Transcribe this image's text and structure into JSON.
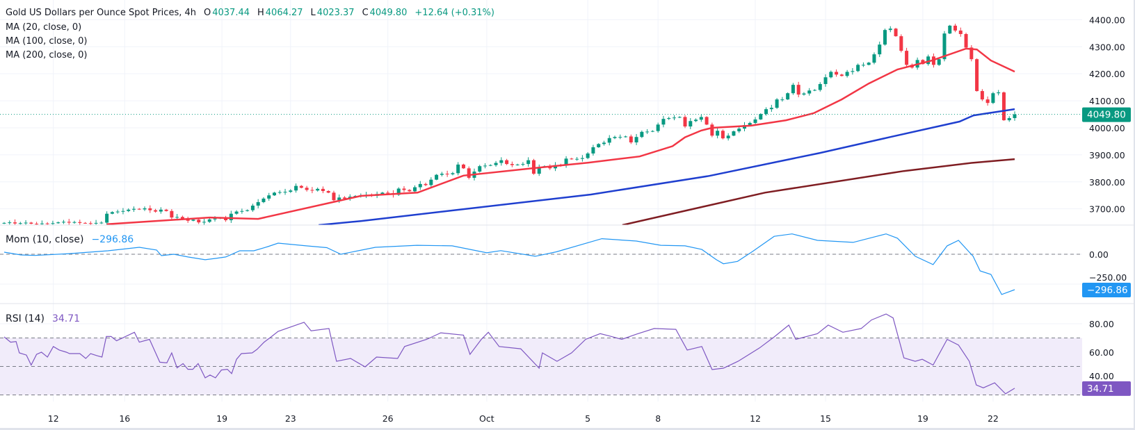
{
  "header": {
    "title": "Gold US Dollars per Ounce Spot Prices, 4h",
    "o_label": "O",
    "o_value": "4037.44",
    "h_label": "H",
    "h_value": "4064.27",
    "l_label": "L",
    "l_value": "4023.37",
    "c_label": "C",
    "c_value": "4049.80",
    "change": "+12.64 (+0.31%)"
  },
  "indicators": {
    "ma20": "MA (20, close, 0)",
    "ma100": "MA (100, close, 0)",
    "ma200": "MA (200, close, 0)",
    "mom_label": "Mom (10, close)",
    "mom_value": "−296.86",
    "rsi_label": "RSI (14)",
    "rsi_value": "34.71"
  },
  "colors": {
    "up": "#089981",
    "down": "#f23645",
    "ma20": "#f23645",
    "ma100": "#1f3fcf",
    "ma200": "#7f1d22",
    "mom": "#2196f3",
    "rsi": "#7e57c2",
    "rsi_band": "#f1ecfa",
    "grid": "#f0f3fa",
    "separator": "#e0e3eb"
  },
  "chart_data": {
    "type": "candlestick",
    "title": "Gold US Dollars per Ounce Spot Prices, 4h",
    "x_tick_labels": [
      {
        "bar": 9.1,
        "label": "12"
      },
      {
        "bar": 22.3,
        "label": "16"
      },
      {
        "bar": 40.3,
        "label": "19"
      },
      {
        "bar": 53,
        "label": "23"
      },
      {
        "bar": 71,
        "label": "26"
      },
      {
        "bar": 89.3,
        "label": "Oct"
      },
      {
        "bar": 108,
        "label": "5"
      },
      {
        "bar": 121,
        "label": "8"
      },
      {
        "bar": 139,
        "label": "12"
      },
      {
        "bar": 152,
        "label": "15"
      },
      {
        "bar": 170,
        "label": "19"
      },
      {
        "bar": 183,
        "label": "22"
      }
    ],
    "price_pane": {
      "ylim": [
        3640,
        4473
      ],
      "y_ticks": [
        {
          "v": 4400,
          "label": "4400.00"
        },
        {
          "v": 4300,
          "label": "4300.00"
        },
        {
          "v": 4200,
          "label": "4200.00"
        },
        {
          "v": 4100,
          "label": "4100.00"
        },
        {
          "v": 4000,
          "label": "4000.00"
        },
        {
          "v": 3900,
          "label": "3900.00"
        },
        {
          "v": 3800,
          "label": "3800.00"
        },
        {
          "v": 3700,
          "label": "3700.00"
        }
      ],
      "last_price": 4049.8,
      "last_price_label": "4049.80",
      "closes": [
        3648,
        3650,
        3646,
        3647,
        3649,
        3645,
        3644,
        3646,
        3645,
        3647,
        3650,
        3652,
        3649,
        3651,
        3648,
        3647,
        3646,
        3648,
        3649,
        3682,
        3688,
        3690,
        3692,
        3697,
        3700,
        3698,
        3702,
        3695,
        3690,
        3697,
        3692,
        3668,
        3670,
        3662,
        3656,
        3660,
        3650,
        3652,
        3661,
        3664,
        3667,
        3658,
        3682,
        3690,
        3692,
        3695,
        3712,
        3725,
        3738,
        3750,
        3760,
        3762,
        3763,
        3768,
        3785,
        3778,
        3770,
        3768,
        3774,
        3766,
        3760,
        3732,
        3742,
        3738,
        3745,
        3748,
        3750,
        3752,
        3748,
        3755,
        3760,
        3758,
        3752,
        3775,
        3770,
        3765,
        3780,
        3792,
        3788,
        3808,
        3826,
        3830,
        3828,
        3832,
        3864,
        3850,
        3815,
        3838,
        3858,
        3860,
        3862,
        3870,
        3880,
        3866,
        3862,
        3864,
        3866,
        3880,
        3830,
        3855,
        3858,
        3850,
        3862,
        3860,
        3886,
        3884,
        3885,
        3888,
        3905,
        3928,
        3940,
        3945,
        3962,
        3966,
        3966,
        3968,
        3946,
        3966,
        3985,
        3986,
        3988,
        4012,
        4033,
        4036,
        4038,
        4040,
        4005,
        4025,
        4030,
        4040,
        4012,
        3971,
        3989,
        3961,
        3971,
        3987,
        3997,
        4010,
        4018,
        4031,
        4051,
        4069,
        4074,
        4105,
        4105,
        4128,
        4159,
        4123,
        4127,
        4138,
        4140,
        4162,
        4187,
        4207,
        4197,
        4192,
        4207,
        4210,
        4233,
        4233,
        4241,
        4272,
        4308,
        4362,
        4367,
        4339,
        4285,
        4233,
        4223,
        4251,
        4236,
        4264,
        4233,
        4254,
        4349,
        4378,
        4360,
        4347,
        4297,
        4254,
        4136,
        4105,
        4092,
        4128,
        4131,
        4028,
        4036,
        4049.8
      ],
      "ma20": [
        [
          19,
          3643
        ],
        [
          38,
          3668
        ],
        [
          47,
          3663
        ],
        [
          66,
          3748
        ],
        [
          76.5,
          3760
        ],
        [
          85,
          3823
        ],
        [
          99,
          3853
        ],
        [
          108,
          3871
        ],
        [
          117.6,
          3894
        ],
        [
          123.7,
          3932
        ],
        [
          126,
          3965
        ],
        [
          129,
          3990
        ],
        [
          131,
          4000
        ],
        [
          138.2,
          4008
        ],
        [
          144.7,
          4028
        ],
        [
          149.8,
          4054
        ],
        [
          155,
          4105
        ],
        [
          160,
          4164
        ],
        [
          165.3,
          4216
        ],
        [
          171.7,
          4249
        ],
        [
          178,
          4293
        ],
        [
          180,
          4290
        ],
        [
          182.6,
          4249
        ],
        [
          187,
          4208
        ]
      ],
      "ma100": [
        [
          58.2,
          3640
        ],
        [
          66,
          3655
        ],
        [
          108.6,
          3753
        ],
        [
          130.5,
          3822
        ],
        [
          151,
          3907
        ],
        [
          164,
          3966
        ],
        [
          176.8,
          4023
        ],
        [
          179.4,
          4046
        ],
        [
          187,
          4069
        ]
      ],
      "ma200": [
        [
          114.4,
          3640
        ],
        [
          140.8,
          3760
        ],
        [
          166.5,
          3840
        ],
        [
          179.4,
          3871
        ],
        [
          187,
          3884
        ]
      ]
    },
    "momentum_pane": {
      "ylim": [
        -413,
        244
      ],
      "y_ticks": [
        {
          "v": 0,
          "label": "0.00"
        },
        {
          "v": -250,
          "label": "−250.00"
        }
      ],
      "last_label": "−296.86",
      "points": [
        [
          0,
          17
        ],
        [
          3.1,
          -6
        ],
        [
          5.7,
          -10
        ],
        [
          12.1,
          5
        ],
        [
          19.2,
          29
        ],
        [
          25,
          58
        ],
        [
          28.2,
          35
        ],
        [
          29.1,
          -12
        ],
        [
          31.4,
          0
        ],
        [
          34,
          -23
        ],
        [
          37.2,
          -46
        ],
        [
          39.1,
          -35
        ],
        [
          41,
          -23
        ],
        [
          43.6,
          29
        ],
        [
          46.2,
          29
        ],
        [
          48.8,
          64
        ],
        [
          50.7,
          93
        ],
        [
          55.9,
          70
        ],
        [
          59.7,
          55
        ],
        [
          62.3,
          0
        ],
        [
          68.7,
          58
        ],
        [
          76.4,
          75
        ],
        [
          82.9,
          70
        ],
        [
          89.3,
          12
        ],
        [
          91.9,
          30
        ],
        [
          98.3,
          -17
        ],
        [
          102.2,
          20
        ],
        [
          110.6,
          130
        ],
        [
          117,
          110
        ],
        [
          121.5,
          75
        ],
        [
          126,
          70
        ],
        [
          129.1,
          40
        ],
        [
          131.8,
          -46
        ],
        [
          133.1,
          -80
        ],
        [
          135.7,
          -60
        ],
        [
          138.5,
          23
        ],
        [
          142.5,
          150
        ],
        [
          145.8,
          170
        ],
        [
          150.5,
          116
        ],
        [
          157.1,
          99
        ],
        [
          163.2,
          170
        ],
        [
          165.3,
          134
        ],
        [
          168.6,
          -17
        ],
        [
          171.9,
          -87
        ],
        [
          174.5,
          70
        ],
        [
          176.6,
          116
        ],
        [
          179.3,
          -17
        ],
        [
          180.6,
          -140
        ],
        [
          182.6,
          -169
        ],
        [
          184.6,
          -337
        ],
        [
          187,
          -296.86
        ]
      ]
    },
    "rsi_pane": {
      "ylim": [
        25.4,
        94.1
      ],
      "band": [
        30,
        70
      ],
      "dashed_levels": [
        70,
        50,
        30
      ],
      "y_ticks": [
        {
          "v": 80,
          "label": "80.00"
        },
        {
          "v": 60,
          "label": "60.00"
        },
        {
          "v": 40,
          "label": "40.00"
        }
      ],
      "last_label": "34.71",
      "points": [
        [
          0,
          70.7
        ],
        [
          1.2,
          67
        ],
        [
          2.2,
          67.5
        ],
        [
          2.8,
          59.5
        ],
        [
          4.1,
          58
        ],
        [
          5,
          51
        ],
        [
          6,
          58.5
        ],
        [
          6.9,
          60
        ],
        [
          8,
          56.6
        ],
        [
          9.1,
          64
        ],
        [
          10.2,
          61.5
        ],
        [
          11.5,
          60
        ],
        [
          12.1,
          59
        ],
        [
          14,
          59
        ],
        [
          15.1,
          55.6
        ],
        [
          16,
          59
        ],
        [
          17.2,
          57.5
        ],
        [
          18.1,
          56.6
        ],
        [
          18.9,
          71
        ],
        [
          19.8,
          71
        ],
        [
          20.8,
          68
        ],
        [
          23,
          72
        ],
        [
          24.1,
          74
        ],
        [
          25,
          67
        ],
        [
          26.9,
          69
        ],
        [
          28.8,
          53
        ],
        [
          30.1,
          52.5
        ],
        [
          31,
          59.5
        ],
        [
          32,
          49
        ],
        [
          33.1,
          52
        ],
        [
          34,
          48
        ],
        [
          34.9,
          48
        ],
        [
          35.9,
          52
        ],
        [
          37.2,
          42
        ],
        [
          38.1,
          44
        ],
        [
          39.1,
          42
        ],
        [
          40.2,
          47.5
        ],
        [
          41.3,
          48
        ],
        [
          42.1,
          45
        ],
        [
          43,
          55
        ],
        [
          43.9,
          59
        ],
        [
          45.9,
          59.5
        ],
        [
          46.8,
          62
        ],
        [
          48.1,
          67
        ],
        [
          49.4,
          70.7
        ],
        [
          50.7,
          74.6
        ],
        [
          55.5,
          81
        ],
        [
          56.8,
          75
        ],
        [
          60.1,
          76.6
        ],
        [
          61.5,
          53.6
        ],
        [
          64.1,
          55.6
        ],
        [
          66.8,
          49.7
        ],
        [
          68.9,
          56.6
        ],
        [
          72.8,
          55.6
        ],
        [
          74.1,
          64
        ],
        [
          78.2,
          69
        ],
        [
          80.8,
          73.6
        ],
        [
          85,
          72
        ],
        [
          86.2,
          58.5
        ],
        [
          88.3,
          69
        ],
        [
          89.6,
          74
        ],
        [
          91.6,
          64
        ],
        [
          95.6,
          62.4
        ],
        [
          99,
          48.8
        ],
        [
          99.6,
          59.5
        ],
        [
          102.3,
          53.6
        ],
        [
          105,
          59.5
        ],
        [
          107.6,
          69
        ],
        [
          110.3,
          73
        ],
        [
          112.4,
          71
        ],
        [
          114.3,
          69
        ],
        [
          117,
          72.6
        ],
        [
          120.3,
          76.6
        ],
        [
          124.3,
          76
        ],
        [
          126.4,
          61.5
        ],
        [
          129.1,
          64
        ],
        [
          131,
          47.8
        ],
        [
          133.1,
          48.8
        ],
        [
          135.8,
          53.6
        ],
        [
          139.8,
          63
        ],
        [
          142.5,
          70.7
        ],
        [
          145.2,
          79
        ],
        [
          146.5,
          69
        ],
        [
          150.5,
          73
        ],
        [
          152.5,
          79
        ],
        [
          155.2,
          74
        ],
        [
          158.6,
          76.6
        ],
        [
          160.5,
          82.6
        ],
        [
          163.2,
          86.8
        ],
        [
          164.5,
          84
        ],
        [
          166.5,
          56
        ],
        [
          168.6,
          53.6
        ],
        [
          169.9,
          55
        ],
        [
          171.9,
          51
        ],
        [
          174.5,
          69
        ],
        [
          176.6,
          65
        ],
        [
          178.6,
          53.6
        ],
        [
          179.9,
          37
        ],
        [
          181.2,
          35
        ],
        [
          183.3,
          38.5
        ],
        [
          185.3,
          30.8
        ],
        [
          187,
          34.71
        ]
      ]
    }
  }
}
